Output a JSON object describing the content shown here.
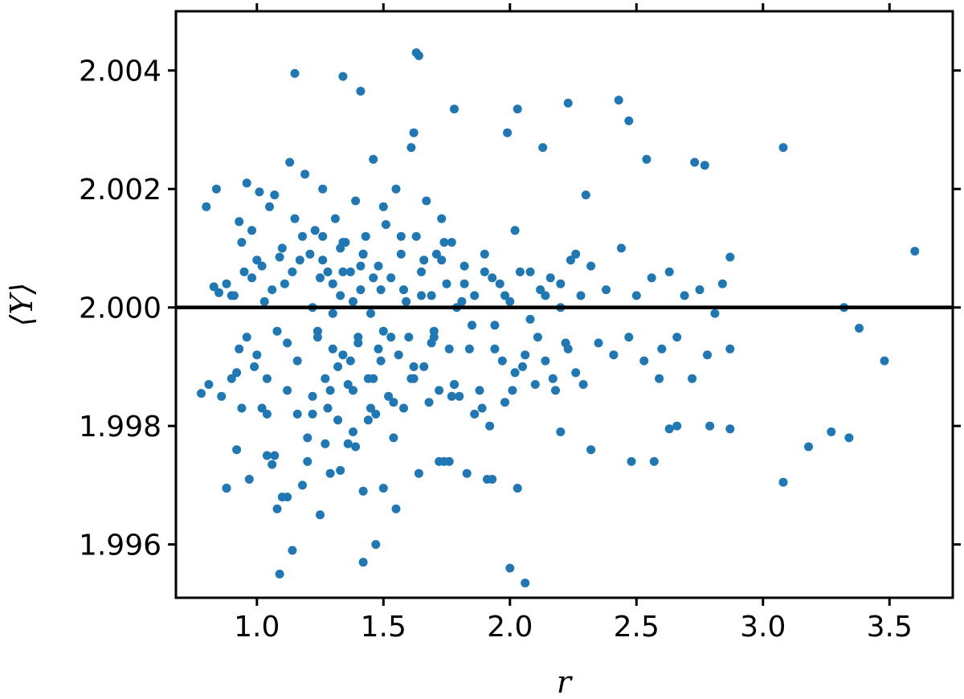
{
  "chart_data": {
    "type": "scatter",
    "xlabel": "r",
    "ylabel": "⟨Y⟩",
    "xlim": [
      0.68,
      3.75
    ],
    "ylim": [
      1.9951,
      2.005
    ],
    "xticks": [
      "1.0",
      "1.5",
      "2.0",
      "2.5",
      "3.0",
      "3.5"
    ],
    "xtick_values": [
      1.0,
      1.5,
      2.0,
      2.5,
      3.0,
      3.5
    ],
    "yticks": [
      "1.996",
      "1.998",
      "2.000",
      "2.002",
      "2.004"
    ],
    "ytick_values": [
      1.996,
      1.998,
      2.0,
      2.002,
      2.004
    ],
    "reference_line": 2.0,
    "grid": false,
    "marker_color": "#1f77b4",
    "line_color": "#000000",
    "series": [
      {
        "x": [
          0.78,
          0.8,
          0.81,
          0.83,
          0.84,
          0.85,
          0.86,
          0.88,
          0.88,
          0.9,
          0.91,
          0.92,
          0.93,
          0.93,
          0.94,
          0.95,
          0.96,
          0.97,
          0.98,
          0.99,
          1.0,
          1.01,
          1.02,
          1.03,
          1.04,
          1.05,
          1.06,
          1.07,
          1.08,
          1.09,
          1.1,
          1.11,
          1.12,
          1.13,
          1.14,
          1.15,
          1.16,
          1.17,
          1.18,
          1.19,
          0.9,
          0.92,
          0.94,
          0.96,
          0.98,
          1.0,
          1.02,
          1.04,
          1.06,
          1.08,
          1.1,
          1.12,
          1.14,
          1.16,
          1.18,
          1.2,
          1.22,
          1.24,
          1.26,
          1.28,
          1.3,
          1.32,
          1.34,
          1.36,
          1.38,
          1.4,
          1.42,
          1.44,
          1.46,
          1.48,
          1.2,
          1.21,
          1.22,
          1.23,
          1.24,
          1.25,
          1.26,
          1.27,
          1.28,
          1.29,
          1.3,
          1.31,
          1.32,
          1.33,
          1.34,
          1.35,
          1.36,
          1.37,
          1.38,
          1.39,
          1.4,
          1.41,
          1.42,
          1.43,
          1.44,
          1.45,
          1.46,
          1.47,
          1.48,
          1.49,
          1.5,
          1.51,
          1.52,
          1.53,
          1.54,
          1.55,
          1.56,
          1.57,
          1.58,
          1.59,
          1.6,
          1.61,
          1.62,
          1.63,
          1.64,
          1.65,
          1.66,
          1.67,
          1.68,
          1.69,
          1.7,
          1.71,
          1.72,
          1.73,
          1.74,
          1.75,
          1.76,
          1.77,
          1.78,
          1.79,
          1.22,
          1.26,
          1.3,
          1.34,
          1.38,
          1.42,
          1.46,
          1.5,
          1.54,
          1.58,
          1.62,
          1.66,
          1.7,
          1.74,
          1.78,
          1.82,
          1.86,
          1.9,
          1.94,
          1.98,
          1.25,
          1.29,
          1.33,
          1.37,
          1.41,
          1.45,
          1.49,
          1.53,
          1.57,
          1.61,
          1.65,
          1.69,
          1.73,
          1.77,
          1.81,
          1.85,
          1.89,
          1.93,
          1.97,
          2.01,
          1.8,
          1.82,
          1.84,
          1.86,
          1.88,
          1.9,
          1.92,
          1.94,
          1.96,
          1.98,
          2.0,
          2.02,
          2.04,
          2.06,
          2.08,
          2.1,
          2.12,
          2.14,
          2.16,
          2.18,
          2.2,
          2.22,
          2.24,
          2.26,
          2.28,
          2.02,
          2.05,
          2.08,
          2.11,
          2.14,
          2.17,
          2.2,
          2.23,
          2.26,
          2.29,
          2.32,
          2.35,
          2.38,
          2.41,
          2.44,
          2.47,
          2.5,
          2.53,
          2.56,
          2.59,
          2.6,
          2.63,
          2.66,
          2.69,
          2.72,
          2.75,
          2.78,
          2.81,
          2.84,
          2.87,
          1.15,
          1.34,
          1.41,
          1.63,
          1.64,
          1.62,
          1.78,
          2.03,
          2.23,
          2.43,
          2.47,
          1.99,
          2.13,
          2.3,
          2.54,
          2.73,
          2.77,
          3.08,
          3.6,
          2.87,
          3.32,
          3.38,
          3.48,
          3.27,
          3.34,
          3.18,
          3.08,
          2.79,
          2.87,
          2.66,
          2.63,
          2.57,
          2.48,
          2.32,
          2.2,
          1.09,
          1.42,
          1.47,
          2.0,
          2.06,
          1.55,
          1.5,
          2.03,
          1.93,
          1.72,
          1.33,
          1.12,
          0.88,
          1.07,
          1.39,
          1.83,
          1.91,
          1.76,
          1.27,
          1.04
        ],
        "y": [
          1.99855,
          2.0017,
          1.9987,
          2.00035,
          2.002,
          2.00025,
          1.9985,
          1.99695,
          2.0004,
          1.9988,
          2.0002,
          1.9976,
          1.9993,
          2.00145,
          1.9983,
          2.0006,
          2.0021,
          1.9971,
          2.0013,
          1.999,
          2.0008,
          2.00195,
          1.9983,
          2.0001,
          1.9988,
          2.0017,
          1.99735,
          2.0019,
          1.9966,
          2.00085,
          1.9968,
          2.0004,
          1.9994,
          2.00245,
          1.9959,
          2.0015,
          1.9982,
          2.0008,
          1.997,
          2.00225,
          2.0002,
          1.9989,
          2.0011,
          1.9995,
          2.0005,
          1.9992,
          2.0007,
          1.9982,
          2.0003,
          1.9996,
          2.001,
          1.9986,
          2.0006,
          1.9991,
          2.0012,
          1.9978,
          2.0,
          1.9996,
          2.0008,
          1.9983,
          2.0004,
          1.999,
          2.0011,
          1.9987,
          2.0001,
          1.9995,
          2.0009,
          1.9981,
          2.0005,
          1.9993,
          1.9974,
          2.0009,
          1.9985,
          2.0013,
          1.9995,
          1.9965,
          2.002,
          1.9988,
          2.0006,
          1.9972,
          1.9999,
          2.0015,
          1.9981,
          2.0002,
          1.9992,
          2.0011,
          1.9977,
          2.0006,
          1.9986,
          2.0018,
          1.9994,
          2.0003,
          1.9969,
          2.0012,
          1.9988,
          1.9999,
          2.0025,
          1.9982,
          2.0007,
          1.9991,
          1.9996,
          2.0014,
          1.9985,
          2.0005,
          1.9978,
          2.002,
          1.9992,
          2.0009,
          1.9983,
          2.0001,
          1.9995,
          2.0027,
          1.9988,
          2.0012,
          1.9972,
          2.0006,
          1.999,
          2.0018,
          1.9984,
          2.0002,
          1.9996,
          2.0009,
          1.9986,
          2.0015,
          1.9974,
          2.0004,
          1.9993,
          2.0011,
          1.9987,
          2.0,
          1.9982,
          2.0012,
          1.9993,
          2.0006,
          1.9979,
          2.0009,
          1.9988,
          2.0017,
          1.9984,
          2.0003,
          1.999,
          2.0008,
          1.9995,
          2.0011,
          1.9987,
          2.0004,
          1.9982,
          2.0006,
          1.9993,
          2.0002,
          2.0005,
          1.9986,
          2.001,
          1.9991,
          2.0007,
          1.9983,
          2.0003,
          1.9995,
          2.0012,
          1.9988,
          2.0002,
          1.9994,
          2.0008,
          1.9985,
          2.0001,
          1.9997,
          1.9983,
          2.0005,
          1.9991,
          1.9986,
          1.9985,
          2.0007,
          1.9993,
          2.0002,
          1.9986,
          2.0009,
          1.998,
          1.9997,
          2.0004,
          1.9984,
          2.0001,
          1.9989,
          2.0006,
          1.9992,
          1.9998,
          1.9987,
          2.0003,
          1.9991,
          2.0005,
          1.9986,
          2.0,
          1.9994,
          2.0008,
          1.9989,
          2.0002,
          2.0013,
          1.999,
          2.0006,
          1.9995,
          2.0002,
          1.9988,
          2.0004,
          1.9993,
          2.0009,
          1.9987,
          2.0007,
          1.9994,
          2.0003,
          1.9992,
          2.001,
          1.9995,
          2.0002,
          1.9991,
          2.0005,
          1.9988,
          1.9993,
          2.0006,
          1.9995,
          2.0002,
          1.9988,
          2.0003,
          1.9992,
          1.9999,
          2.0004,
          1.9993,
          2.00395,
          2.0039,
          2.00365,
          2.0043,
          2.00425,
          2.00295,
          2.00335,
          2.00335,
          2.00345,
          2.0035,
          2.00315,
          2.00295,
          2.0027,
          2.0019,
          2.0025,
          2.00245,
          2.0024,
          2.0027,
          2.00095,
          2.00085,
          2.0,
          1.99965,
          1.9991,
          1.9979,
          1.9978,
          1.99765,
          1.99705,
          1.998,
          1.99795,
          1.998,
          1.99795,
          1.9974,
          1.9974,
          1.9976,
          1.9979,
          1.9955,
          1.9957,
          1.996,
          1.9956,
          1.99535,
          1.9966,
          1.99695,
          1.99695,
          1.9971,
          1.9974,
          1.99725,
          1.9968,
          1.99695,
          1.9975,
          1.99765,
          1.9972,
          1.9971,
          1.9974,
          1.9977,
          1.9975
        ]
      }
    ]
  }
}
